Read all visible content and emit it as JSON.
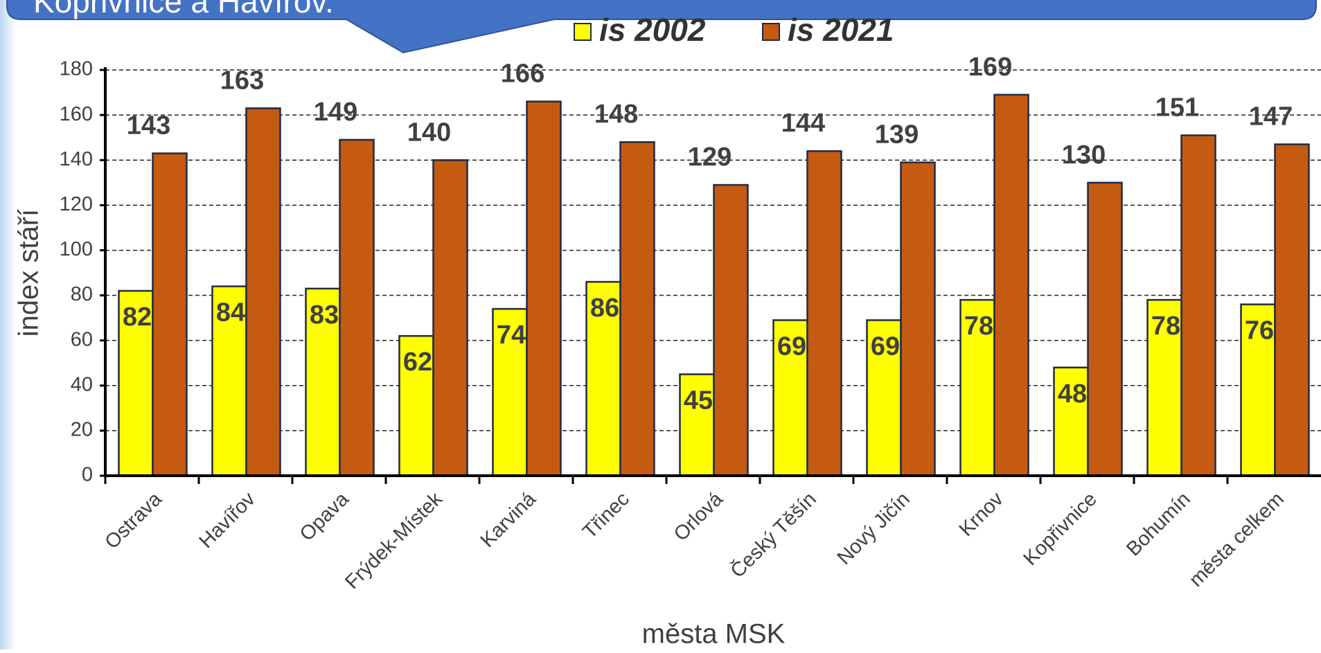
{
  "callout": "Kopřivnice a Havířov.",
  "chart_data": {
    "type": "bar",
    "categories": [
      "Ostrava",
      "Havířov",
      "Opava",
      "Frýdek-Místek",
      "Karviná",
      "Třinec",
      "Orlová",
      "Český Těšín",
      "Nový Jičín",
      "Krnov",
      "Kopřivnice",
      "Bohumín",
      "města celkem"
    ],
    "series": [
      {
        "name": "is 2002",
        "color": "#ffff00",
        "values": [
          82,
          84,
          83,
          62,
          74,
          86,
          45,
          69,
          69,
          78,
          48,
          78,
          76
        ]
      },
      {
        "name": "is 2021",
        "color": "#c55a11",
        "values": [
          143,
          163,
          149,
          140,
          166,
          148,
          129,
          144,
          139,
          169,
          130,
          151,
          147
        ]
      }
    ],
    "x_label": "města MSK",
    "y_label": "index stáří",
    "ylim": [
      0,
      180
    ],
    "yticks": [
      0,
      20,
      40,
      60,
      80,
      100,
      120,
      140,
      160,
      180
    ],
    "grid": true,
    "legend": "top"
  }
}
